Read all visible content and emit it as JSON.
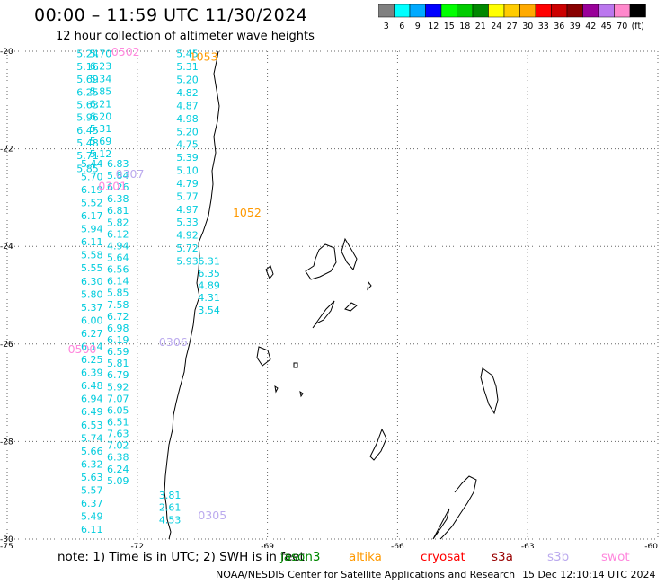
{
  "header": {
    "title": "00:00 – 11:59 UTC 11/30/2024",
    "subtitle": "12 hour collection of altimeter wave heights"
  },
  "legend": {
    "colors": [
      "#808080",
      "#00ffff",
      "#00aaff",
      "#0000ff",
      "#00ff00",
      "#00cc00",
      "#008800",
      "#ffff00",
      "#ffcc00",
      "#ffaa00",
      "#ff0000",
      "#cc0000",
      "#880000",
      "#990099",
      "#bb77ee",
      "#ff88cc",
      "#000000"
    ],
    "labels": [
      "3",
      "6",
      "9",
      "12",
      "15",
      "18",
      "21",
      "24",
      "27",
      "30",
      "33",
      "36",
      "39",
      "42",
      "45",
      "70",
      "(ft)"
    ]
  },
  "axes": {
    "lat_labels": [
      "-20",
      "-22",
      "-24",
      "-26",
      "-28",
      "-30"
    ],
    "lon_labels": [
      "-75",
      "-72",
      "-69",
      "-66",
      "-63",
      "-60"
    ]
  },
  "chart_data": {
    "type": "scatter",
    "x_range": [
      -75,
      -60
    ],
    "y_range": [
      -30,
      -20
    ],
    "x_ticks": [
      -75,
      -72,
      -69,
      -66,
      -63,
      -60
    ],
    "y_ticks": [
      -20,
      -22,
      -24,
      -26,
      -28,
      -30
    ],
    "grid": true,
    "tracks": [
      {
        "name": "track-a",
        "color": "#00ccdd",
        "lon": -73.4,
        "lat_start": -20.05,
        "lat_end": -22.4,
        "values": [
          "5.24",
          "5.16",
          "5.69",
          "6.25",
          "5.63",
          "5.96",
          "6.45",
          "5.48",
          "5.71",
          "5.85"
        ]
      },
      {
        "name": "track-b",
        "color": "#00ccdd",
        "lon": -73.1,
        "lat_start": -20.05,
        "lat_end": -22.1,
        "values": [
          "5.70",
          "6.23",
          "5.34",
          "5.85",
          "6.21",
          "6.20",
          "5.31",
          "5.69",
          "5.12"
        ]
      },
      {
        "name": "track-c",
        "color": "#00ccdd",
        "lon": -73.3,
        "lat_start": -22.3,
        "lat_end": -29.8,
        "values": [
          "5.44",
          "5.70",
          "6.19",
          "5.52",
          "6.17",
          "5.94",
          "6.11",
          "5.58",
          "5.55",
          "6.30",
          "5.80",
          "5.37",
          "6.00",
          "6.27",
          "6.14",
          "6.25",
          "6.39",
          "6.48",
          "6.94",
          "6.49",
          "6.53",
          "5.74",
          "5.66",
          "6.32",
          "5.63",
          "5.57",
          "6.37",
          "5.49",
          "6.11"
        ]
      },
      {
        "name": "track-d",
        "color": "#00ccdd",
        "lon": -72.7,
        "lat_start": -22.3,
        "lat_end": -28.8,
        "values": [
          "6.83",
          "5.84",
          "6.26",
          "6.38",
          "6.81",
          "5.82",
          "6.12",
          "4.94",
          "5.64",
          "6.56",
          "6.14",
          "5.85",
          "7.58",
          "6.72",
          "6.98",
          "6.19",
          "6.59",
          "5.81",
          "6.79",
          "5.92",
          "7.07",
          "6.05",
          "6.51",
          "7.63",
          "7.02",
          "6.38",
          "6.24",
          "5.09"
        ]
      },
      {
        "name": "track-e",
        "color": "#00ccdd",
        "lon": -71.1,
        "lat_start": -20.05,
        "lat_end": -24.3,
        "values": [
          "5.45",
          "5.31",
          "5.20",
          "4.82",
          "4.87",
          "4.98",
          "5.20",
          "4.75",
          "5.39",
          "5.10",
          "4.79",
          "5.77",
          "4.97",
          "5.33",
          "4.92",
          "5.72",
          "5.93"
        ]
      },
      {
        "name": "track-f",
        "color": "#00ccdd",
        "lon": -70.6,
        "lat_start": -24.3,
        "lat_end": -25.3,
        "values": [
          "6.31",
          "6.35",
          "4.89",
          "4.31",
          "3.54"
        ]
      },
      {
        "name": "track-g",
        "color": "#00ccdd",
        "lon": -71.5,
        "lat_start": -29.1,
        "lat_end": -29.6,
        "values": [
          "3.81",
          "2.61",
          "4.53"
        ]
      }
    ],
    "pass_labels": [
      {
        "text": "1053",
        "color": "#ff9900",
        "lon": -70.8,
        "lat": -20.1
      },
      {
        "text": "1052",
        "color": "#ff9900",
        "lon": -69.8,
        "lat": -23.3
      },
      {
        "text": "0502",
        "color": "#ff88dd",
        "lon": -72.6,
        "lat": -20.0
      },
      {
        "text": "0301",
        "color": "#ff88dd",
        "lon": -72.9,
        "lat": -22.75
      },
      {
        "text": "0500",
        "color": "#ff88dd",
        "lon": -73.6,
        "lat": -26.1
      },
      {
        "text": "0307",
        "color": "#bbaaee",
        "lon": -72.5,
        "lat": -22.5
      },
      {
        "text": "0306",
        "color": "#bbaaee",
        "lon": -71.5,
        "lat": -25.95
      },
      {
        "text": "0305",
        "color": "#bbaaee",
        "lon": -70.6,
        "lat": -29.5
      }
    ]
  },
  "footer": {
    "note": "note:  1) Time is in UTC; 2) SWH is in feet",
    "satellites": [
      {
        "name": "jason3",
        "color": "#008800"
      },
      {
        "name": "altika",
        "color": "#ff9900"
      },
      {
        "name": "cryosat",
        "color": "#ff0000"
      },
      {
        "name": "s3a",
        "color": "#990000"
      },
      {
        "name": "s3b",
        "color": "#bbaaee"
      },
      {
        "name": "swot",
        "color": "#ff88dd"
      }
    ],
    "credit": "NOAA/NESDIS Center for Satellite Applications and Research",
    "timestamp": "15 Dec 12:10:14 UTC 2024"
  }
}
